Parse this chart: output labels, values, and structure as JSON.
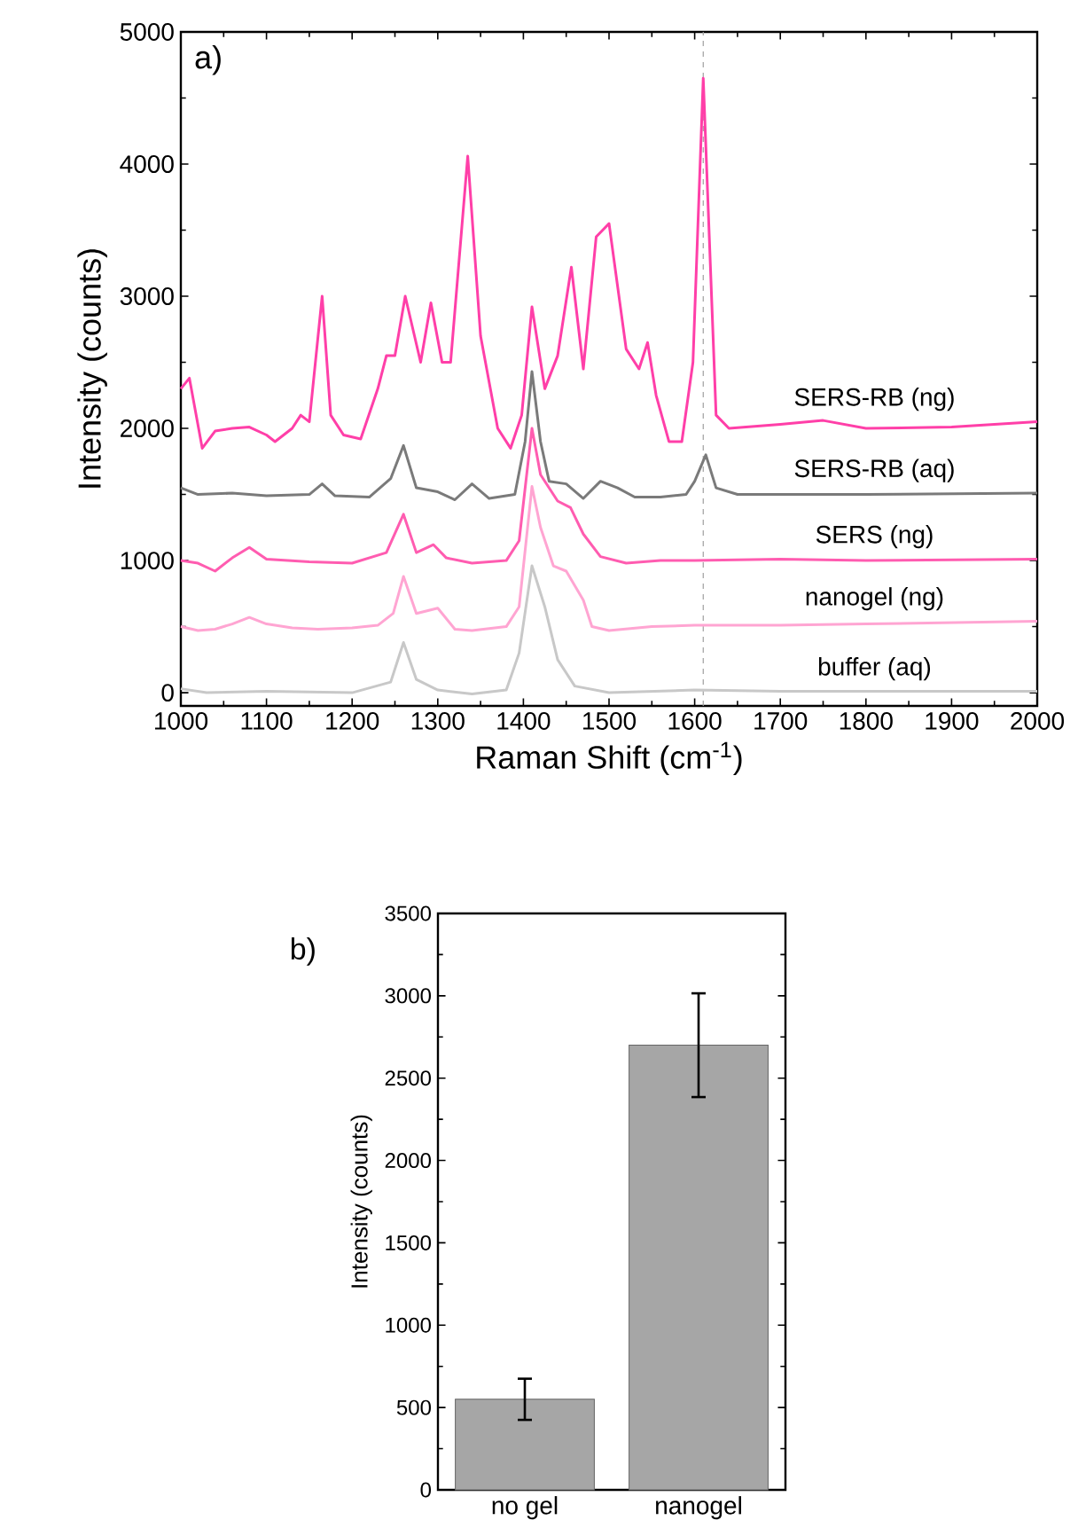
{
  "chart_data": [
    {
      "type": "line",
      "xlabel": "Raman Shift (cm$^{-1}$)",
      "ylabel": "Intensity (counts)",
      "annotations": [
        "a)"
      ],
      "xlim": [
        1000,
        2000
      ],
      "ylim": [
        -100,
        5000
      ],
      "xticks": [
        1000,
        1100,
        1200,
        1300,
        1400,
        1500,
        1600,
        1700,
        1800,
        1900,
        2000
      ],
      "yticks": [
        0,
        1000,
        2000,
        3000,
        4000,
        5000
      ],
      "marker": "none",
      "line_style": "solid",
      "grid": false,
      "ref_lines": [
        {
          "axis": "x",
          "value": 1610,
          "color": "#a0a0a0",
          "line_style": "dashed"
        }
      ],
      "series": [
        {
          "name": "SERS-RB (ng)",
          "color": "#ff3fa8",
          "x": [
            1000,
            1010,
            1025,
            1040,
            1060,
            1080,
            1100,
            1110,
            1130,
            1140,
            1150,
            1165,
            1175,
            1190,
            1210,
            1230,
            1240,
            1250,
            1262,
            1280,
            1292,
            1305,
            1315,
            1335,
            1350,
            1370,
            1385,
            1398,
            1410,
            1425,
            1440,
            1456,
            1470,
            1485,
            1500,
            1520,
            1535,
            1545,
            1555,
            1570,
            1585,
            1598,
            1610,
            1625,
            1640,
            1700,
            1750,
            1800,
            1900,
            2000
          ],
          "values": [
            2300,
            2380,
            1850,
            1980,
            2000,
            2010,
            1950,
            1900,
            2000,
            2100,
            2050,
            3000,
            2100,
            1950,
            1920,
            2300,
            2550,
            2550,
            3000,
            2500,
            2950,
            2500,
            2500,
            4060,
            2700,
            2000,
            1850,
            2100,
            2920,
            2300,
            2550,
            3220,
            2450,
            3450,
            3550,
            2600,
            2450,
            2650,
            2250,
            1900,
            1900,
            2500,
            4650,
            2100,
            2000,
            2030,
            2060,
            2000,
            2010,
            2050
          ]
        },
        {
          "name": "SERS-RB (aq)",
          "color": "#7a7a7a",
          "x": [
            1000,
            1020,
            1060,
            1100,
            1150,
            1165,
            1180,
            1220,
            1245,
            1260,
            1275,
            1300,
            1320,
            1340,
            1360,
            1390,
            1402,
            1410,
            1420,
            1430,
            1450,
            1470,
            1490,
            1510,
            1530,
            1560,
            1590,
            1600,
            1613,
            1625,
            1650,
            1800,
            2000
          ],
          "values": [
            1550,
            1500,
            1510,
            1490,
            1500,
            1580,
            1490,
            1480,
            1620,
            1870,
            1550,
            1520,
            1460,
            1580,
            1470,
            1500,
            1900,
            2430,
            1900,
            1600,
            1580,
            1470,
            1600,
            1550,
            1480,
            1480,
            1500,
            1600,
            1800,
            1550,
            1500,
            1500,
            1510
          ]
        },
        {
          "name": "SERS (ng)",
          "color": "#ff5cb0",
          "x": [
            1000,
            1020,
            1040,
            1060,
            1080,
            1100,
            1150,
            1200,
            1240,
            1260,
            1275,
            1295,
            1310,
            1340,
            1380,
            1395,
            1410,
            1420,
            1440,
            1455,
            1470,
            1490,
            1520,
            1560,
            1600,
            1700,
            1800,
            2000
          ],
          "values": [
            1000,
            980,
            920,
            1020,
            1100,
            1010,
            990,
            980,
            1060,
            1350,
            1060,
            1120,
            1020,
            980,
            1000,
            1150,
            2000,
            1650,
            1450,
            1400,
            1200,
            1030,
            980,
            1000,
            1000,
            1010,
            1000,
            1010
          ]
        },
        {
          "name": "nanogel (ng)",
          "color": "#ffa5d2",
          "x": [
            1000,
            1020,
            1040,
            1060,
            1080,
            1100,
            1130,
            1160,
            1200,
            1230,
            1248,
            1260,
            1275,
            1300,
            1320,
            1340,
            1380,
            1395,
            1410,
            1420,
            1435,
            1450,
            1470,
            1480,
            1500,
            1550,
            1600,
            1700,
            1800,
            2000
          ],
          "values": [
            500,
            470,
            480,
            520,
            570,
            520,
            490,
            480,
            490,
            510,
            600,
            880,
            600,
            640,
            480,
            470,
            500,
            650,
            1560,
            1250,
            960,
            920,
            700,
            500,
            470,
            500,
            510,
            510,
            520,
            540
          ]
        },
        {
          "name": "buffer (aq)",
          "color": "#c8c8c8",
          "x": [
            1000,
            1030,
            1100,
            1200,
            1245,
            1260,
            1275,
            1300,
            1340,
            1380,
            1395,
            1410,
            1425,
            1440,
            1460,
            1500,
            1600,
            1700,
            2000
          ],
          "values": [
            30,
            0,
            10,
            0,
            80,
            380,
            100,
            20,
            -10,
            20,
            300,
            960,
            650,
            250,
            50,
            0,
            20,
            10,
            10
          ]
        }
      ]
    },
    {
      "type": "bar",
      "ylabel": "Intensity (counts)",
      "annotations": [
        "b)"
      ],
      "categories": [
        "no gel",
        "nanogel"
      ],
      "values": [
        550,
        2700
      ],
      "errors": [
        125,
        315
      ],
      "color": "#a6a6a6",
      "ylim": [
        0,
        3500
      ],
      "yticks": [
        0,
        500,
        1000,
        1500,
        2000,
        2500,
        3000,
        3500
      ],
      "grid": false
    }
  ]
}
